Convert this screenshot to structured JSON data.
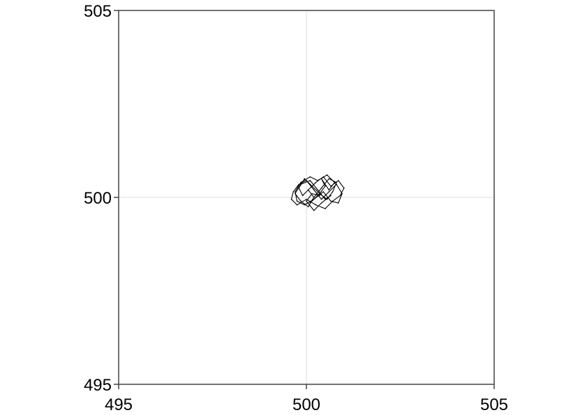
{
  "chart_data": {
    "type": "line",
    "title": "",
    "xlabel": "",
    "ylabel": "",
    "xlim": [
      495,
      505
    ],
    "ylim": [
      495,
      505
    ],
    "x_ticks": [
      "495",
      "500",
      "505"
    ],
    "y_ticks": [
      "495",
      "500",
      "505"
    ],
    "grid": true,
    "legend": "none",
    "series": [
      {
        "color": "#000000",
        "x": [
          499.9,
          500.05,
          500.2,
          500.1,
          500.35,
          500.5,
          500.4,
          500.6,
          500.75,
          500.55,
          500.3,
          500.1,
          499.85,
          499.7,
          499.75,
          499.95,
          500.2,
          500.45,
          500.65,
          500.85,
          500.95,
          500.8,
          500.6,
          500.4,
          500.2,
          500.0,
          499.8,
          499.65,
          499.6,
          499.75,
          500.0,
          500.25,
          500.5,
          500.7,
          500.9,
          501.0,
          500.85,
          500.65,
          500.45,
          500.25,
          500.05,
          499.9,
          499.8,
          499.95,
          500.15,
          500.35,
          500.55,
          500.7,
          500.8,
          500.6,
          500.4,
          500.2,
          500.05,
          499.85,
          499.7,
          499.85,
          500.1,
          500.3,
          500.5,
          500.65,
          500.4,
          500.2,
          500.0,
          500.15,
          500.35
        ],
        "y": [
          500.05,
          500.2,
          500.0,
          499.85,
          500.1,
          500.3,
          500.5,
          500.2,
          500.4,
          500.6,
          500.45,
          500.55,
          500.4,
          500.15,
          499.9,
          499.8,
          499.95,
          500.15,
          499.9,
          499.85,
          500.1,
          500.35,
          500.15,
          499.95,
          500.2,
          500.45,
          500.35,
          500.15,
          499.95,
          499.8,
          499.95,
          499.8,
          499.7,
          499.9,
          500.05,
          500.25,
          500.45,
          500.3,
          500.55,
          500.4,
          500.2,
          500.05,
          500.25,
          500.5,
          500.3,
          500.1,
          499.95,
          500.15,
          500.4,
          500.5,
          500.25,
          500.0,
          499.75,
          499.9,
          500.1,
          500.35,
          500.45,
          500.2,
          499.95,
          500.05,
          499.85,
          499.65,
          499.9,
          500.1,
          500.05
        ]
      }
    ]
  }
}
